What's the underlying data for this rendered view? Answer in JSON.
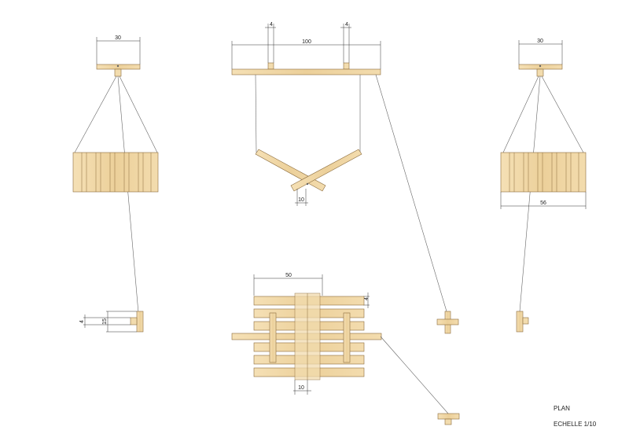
{
  "title": {
    "plan": "PLAN",
    "scale": "ECHELLE 1/10"
  },
  "dimensions": {
    "left_top_width": "30",
    "center_beam_length": "100",
    "center_post_left": "4",
    "center_post_right": "4",
    "center_cross_offset": "10",
    "right_top_width": "30",
    "right_block_width": "56",
    "bottom_center_width": "50",
    "bottom_center_slat": "4",
    "bottom_center_gap": "10",
    "left_small_a": "4",
    "left_small_b": "15"
  },
  "colors": {
    "wood": "#f0d6a4",
    "wood_edge": "#8a6a3a",
    "line": "#333333"
  }
}
